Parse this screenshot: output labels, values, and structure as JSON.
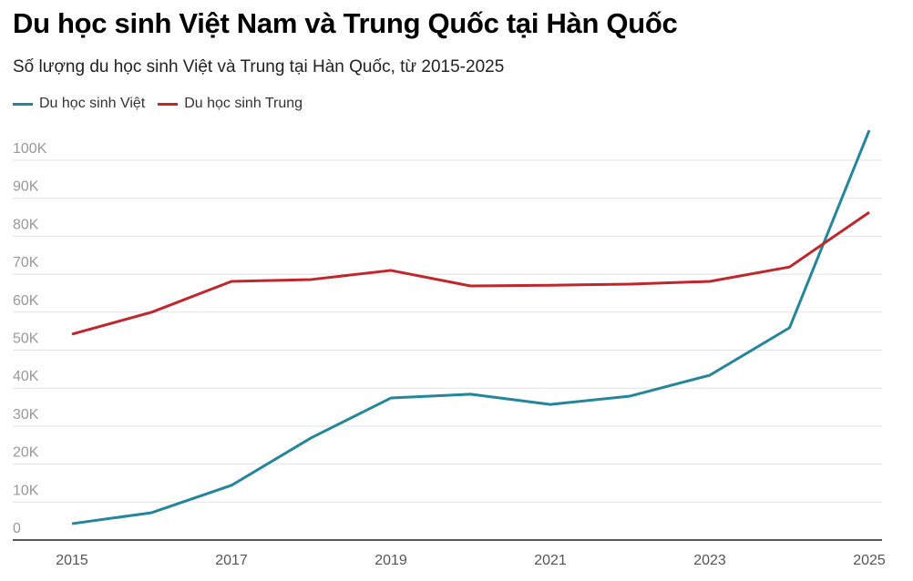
{
  "chart_data": {
    "type": "line",
    "title": "Du học sinh Việt Nam và Trung Quốc tại Hàn Quốc",
    "subtitle": "Số lượng du học sinh Việt và Trung tại Hàn Quốc, từ 2015-2025",
    "x": [
      2015,
      2016,
      2017,
      2018,
      2019,
      2020,
      2021,
      2022,
      2023,
      2024,
      2025
    ],
    "x_tick_labels": [
      "2015",
      "2017",
      "2019",
      "2021",
      "2023",
      "2025"
    ],
    "y_tick_labels": [
      "0",
      "10K",
      "20K",
      "30K",
      "40K",
      "50K",
      "60K",
      "70K",
      "80K",
      "90K",
      "100K"
    ],
    "ylim": [
      0,
      100000
    ],
    "grid": true,
    "legend_position": "top-left",
    "series": [
      {
        "name": "Du học sinh Việt",
        "color": "#24869b",
        "values": [
          4300,
          7200,
          14400,
          26900,
          37400,
          38400,
          35700,
          37900,
          43400,
          55900,
          107900
        ]
      },
      {
        "name": "Du học sinh Trung",
        "color": "#c0272d",
        "values": [
          54200,
          60000,
          68100,
          68600,
          71000,
          66900,
          67100,
          67400,
          68100,
          71900,
          86300
        ]
      }
    ]
  }
}
